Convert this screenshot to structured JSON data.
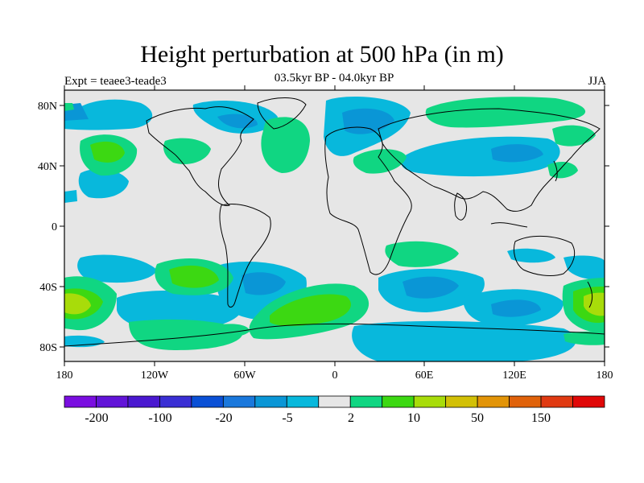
{
  "title": "Height perturbation at 500 hPa (in m)",
  "subtitle": "03.5kyr BP - 04.0kyr BP",
  "left_label": "Expt = teaee3-teade3",
  "right_label": "JJA",
  "map": {
    "lat_ticks": [
      "80N",
      "40N",
      "0",
      "40S",
      "80S"
    ],
    "lon_ticks": [
      "180",
      "120W",
      "60W",
      "0",
      "60E",
      "120E",
      "180"
    ]
  },
  "colorbar": {
    "labels": [
      "-200",
      "-100",
      "-20",
      "-5",
      "2",
      "10",
      "50",
      "150"
    ],
    "colors": [
      "#7a0ee0",
      "#6214d8",
      "#4a18d0",
      "#3a2fd4",
      "#0a50d6",
      "#1a78dc",
      "#0a96d6",
      "#08b8dc",
      "#e6e6e6",
      "#10d682",
      "#3cd812",
      "#a8dc0a",
      "#d2c006",
      "#e29408",
      "#e0620a",
      "#e03a12",
      "#e00808"
    ]
  },
  "colors": {
    "land_bg": "#e6e6e6",
    "neg_weak": "#08b8dc",
    "neg_mid": "#0a96d6",
    "neg_strong": "#1a78dc",
    "pos_weak": "#10d682",
    "pos_mid": "#3cd812",
    "pos_strong": "#a8dc0a"
  }
}
